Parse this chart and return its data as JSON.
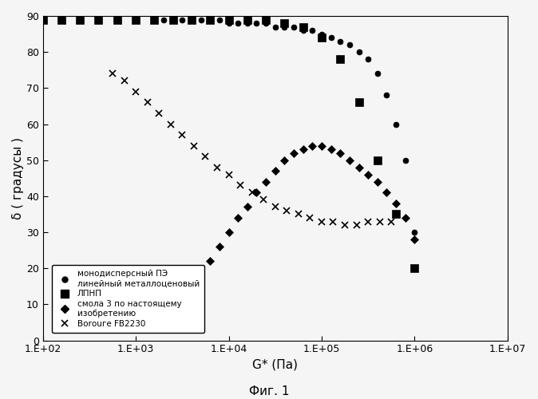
{
  "title": "Фиг. 1",
  "xlabel": "G* (Па)",
  "ylabel": "δ ( градусы )",
  "ylim": [
    0,
    90
  ],
  "yticks": [
    0,
    10,
    20,
    30,
    40,
    50,
    60,
    70,
    80,
    90
  ],
  "background_color": "#f0f0f0",
  "series": [
    {
      "label": "монодисперсный ПЭ\nлинейный металлоценовый",
      "marker": "o",
      "color": "#000000",
      "markersize": 5,
      "x": [
        2000,
        2500,
        3162,
        3981,
        5012,
        6310,
        7943,
        10000,
        12589,
        15849,
        19953,
        25119,
        31623,
        39811,
        50119,
        63096,
        79433,
        100000,
        125893,
        158489,
        199526,
        251189,
        316228,
        398107,
        501187,
        630957,
        794328,
        1000000
      ],
      "y": [
        89,
        89,
        89,
        89,
        89,
        89,
        89,
        88,
        88,
        88,
        88,
        88,
        87,
        87,
        87,
        86,
        86,
        85,
        84,
        83,
        82,
        80,
        78,
        74,
        68,
        60,
        50,
        30
      ]
    },
    {
      "label": "ЛПНП",
      "marker": "s",
      "color": "#000000",
      "markersize": 7,
      "x": [
        100,
        158,
        251,
        398,
        631,
        1000,
        1585,
        2512,
        3981,
        6310,
        10000,
        15849,
        25119,
        39811,
        63096,
        100000,
        158489,
        251189,
        398107,
        630957,
        1000000
      ],
      "y": [
        89,
        89,
        89,
        89,
        89,
        89,
        89,
        89,
        89,
        89,
        89,
        89,
        89,
        88,
        87,
        84,
        78,
        66,
        50,
        35,
        20
      ]
    },
    {
      "label": "смола 3 по настоящему\nизобретению",
      "marker": "D",
      "color": "#000000",
      "markersize": 5,
      "x": [
        6310,
        7943,
        10000,
        12589,
        15849,
        19953,
        25119,
        31623,
        39811,
        50119,
        63096,
        79433,
        100000,
        125893,
        158489,
        199526,
        251189,
        316228,
        398107,
        501187,
        630957,
        794328,
        1000000
      ],
      "y": [
        22,
        26,
        30,
        34,
        37,
        41,
        44,
        47,
        50,
        52,
        53,
        54,
        54,
        53,
        52,
        50,
        48,
        46,
        44,
        41,
        38,
        34,
        28
      ]
    },
    {
      "label": "Borоuгe FB2230",
      "marker": "x",
      "color": "#000000",
      "markersize": 6,
      "x": [
        562,
        750,
        1000,
        1334,
        1778,
        2371,
        3162,
        4217,
        5623,
        7499,
        10000,
        13335,
        17783,
        23714,
        31623,
        42170,
        56234,
        74989,
        100000,
        133352,
        177828,
        237137,
        316228,
        421697,
        562341
      ],
      "y": [
        74,
        72,
        69,
        66,
        63,
        60,
        57,
        54,
        51,
        48,
        46,
        43,
        41,
        39,
        37,
        36,
        35,
        34,
        33,
        33,
        32,
        32,
        33,
        33,
        33
      ]
    }
  ],
  "legend_entries": [
    {
      "label": "монодисперсный ПЭ\nлинейный металлоценовый",
      "marker": "o",
      "color": "#000000"
    },
    {
      "label": "ЛПНП",
      "marker": "s",
      "color": "#000000"
    },
    {
      "label": "смола 3 по настоящему\nизобретению",
      "marker": "D",
      "color": "#000000"
    },
    {
      "label": "Borоuгe FB2230",
      "marker": "x",
      "color": "#000000"
    }
  ]
}
